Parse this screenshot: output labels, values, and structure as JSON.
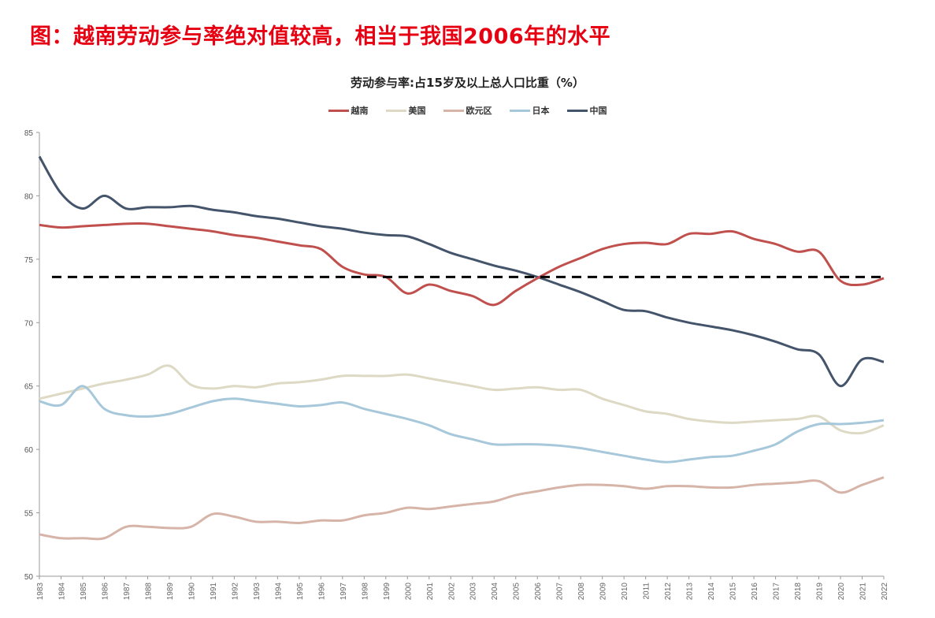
{
  "headline": "图：越南劳动参与率绝对值较高，相当于我国2006年的水平",
  "chart_data": {
    "type": "line",
    "title": "劳动参与率:占15岁及以上总人口比重（%）",
    "xlabel": "",
    "ylabel": "",
    "ylim": [
      50,
      85
    ],
    "yticks": [
      50,
      55,
      60,
      65,
      70,
      75,
      80,
      85
    ],
    "legend_position": "top-center",
    "grid": false,
    "x": [
      1983,
      1984,
      1985,
      1986,
      1987,
      1988,
      1989,
      1990,
      1991,
      1992,
      1993,
      1994,
      1995,
      1996,
      1997,
      1998,
      1999,
      2000,
      2001,
      2002,
      2003,
      2004,
      2005,
      2006,
      2007,
      2008,
      2009,
      2010,
      2011,
      2012,
      2013,
      2014,
      2015,
      2016,
      2017,
      2018,
      2019,
      2020,
      2021,
      2022
    ],
    "reference_line": {
      "value": 73.6,
      "style": "dashed",
      "color": "#000000"
    },
    "series": [
      {
        "name": "越南",
        "color": "#c0504d",
        "values": [
          77.7,
          77.5,
          77.6,
          77.7,
          77.8,
          77.8,
          77.6,
          77.4,
          77.2,
          76.9,
          76.7,
          76.4,
          76.1,
          75.8,
          74.4,
          73.8,
          73.6,
          72.3,
          73.0,
          72.5,
          72.1,
          71.4,
          72.5,
          73.5,
          74.4,
          75.1,
          75.8,
          76.2,
          76.3,
          76.2,
          77.0,
          77.0,
          77.2,
          76.6,
          76.2,
          75.6,
          75.6,
          73.3,
          73.0,
          73.5
        ]
      },
      {
        "name": "美国",
        "color": "#ddd9c4",
        "values": [
          64.0,
          64.4,
          64.8,
          65.2,
          65.5,
          65.9,
          66.6,
          65.1,
          64.8,
          65.0,
          64.9,
          65.2,
          65.3,
          65.5,
          65.8,
          65.8,
          65.8,
          65.9,
          65.6,
          65.3,
          65.0,
          64.7,
          64.8,
          64.9,
          64.7,
          64.7,
          64.0,
          63.5,
          63.0,
          62.8,
          62.4,
          62.2,
          62.1,
          62.2,
          62.3,
          62.4,
          62.6,
          61.5,
          61.3,
          61.9
        ]
      },
      {
        "name": "欧元区",
        "color": "#d6b4a8",
        "values": [
          53.3,
          53.0,
          53.0,
          53.0,
          53.9,
          53.9,
          53.8,
          53.9,
          54.9,
          54.7,
          54.3,
          54.3,
          54.2,
          54.4,
          54.4,
          54.8,
          55.0,
          55.4,
          55.3,
          55.5,
          55.7,
          55.9,
          56.4,
          56.7,
          57.0,
          57.2,
          57.2,
          57.1,
          56.9,
          57.1,
          57.1,
          57.0,
          57.0,
          57.2,
          57.3,
          57.4,
          57.5,
          56.6,
          57.2,
          57.8
        ]
      },
      {
        "name": "日本",
        "color": "#a6c8da",
        "values": [
          63.8,
          63.5,
          65.0,
          63.2,
          62.7,
          62.6,
          62.8,
          63.3,
          63.8,
          64.0,
          63.8,
          63.6,
          63.4,
          63.5,
          63.7,
          63.2,
          62.8,
          62.4,
          61.9,
          61.2,
          60.8,
          60.4,
          60.4,
          60.4,
          60.3,
          60.1,
          59.8,
          59.5,
          59.2,
          59.0,
          59.2,
          59.4,
          59.5,
          59.9,
          60.4,
          61.4,
          62.0,
          62.0,
          62.1,
          62.3
        ]
      },
      {
        "name": "中国",
        "color": "#44546a",
        "values": [
          83.1,
          80.2,
          79.0,
          80.0,
          79.0,
          79.1,
          79.1,
          79.2,
          78.9,
          78.7,
          78.4,
          78.2,
          77.9,
          77.6,
          77.4,
          77.1,
          76.9,
          76.8,
          76.2,
          75.5,
          75.0,
          74.5,
          74.1,
          73.6,
          73.0,
          72.4,
          71.7,
          71.0,
          70.9,
          70.4,
          70.0,
          69.7,
          69.4,
          69.0,
          68.5,
          67.9,
          67.5,
          65.0,
          67.1,
          66.9
        ]
      }
    ]
  }
}
